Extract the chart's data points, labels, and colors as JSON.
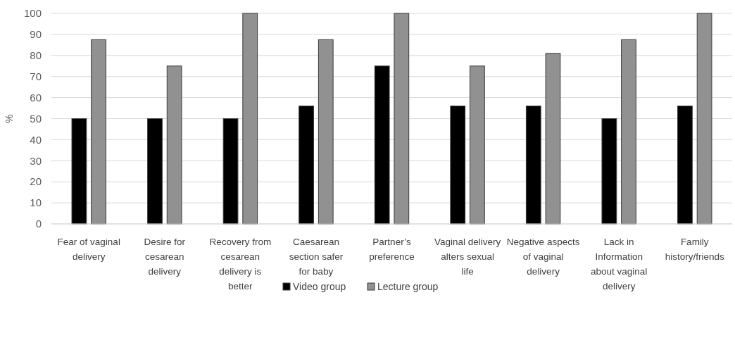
{
  "chart_data": {
    "type": "bar",
    "ylabel": "%",
    "categories": [
      "Fear of vaginal delivery",
      "Desire for cesarean delivery",
      "Recovery from cesarean delivery is better",
      "Caesarean section safer for baby",
      "Partner’s preference",
      "Vaginal delivery alters sexual life",
      "Negative aspects of vaginal delivery",
      "Lack in Information about vaginal delivery",
      "Family history/friends"
    ],
    "series": [
      {
        "name": "Video group",
        "color": "#000000",
        "values": [
          50,
          50,
          50,
          56,
          75,
          56,
          56,
          50,
          56
        ]
      },
      {
        "name": "Lecture group",
        "color": "#919191",
        "values": [
          87.5,
          75,
          100,
          87.5,
          100,
          75,
          81,
          87.5,
          100
        ]
      }
    ],
    "ylim": [
      0,
      100
    ],
    "yticks": [
      0,
      10,
      20,
      30,
      40,
      50,
      60,
      70,
      80,
      90,
      100
    ],
    "grid": "y",
    "legend": "bottom"
  }
}
